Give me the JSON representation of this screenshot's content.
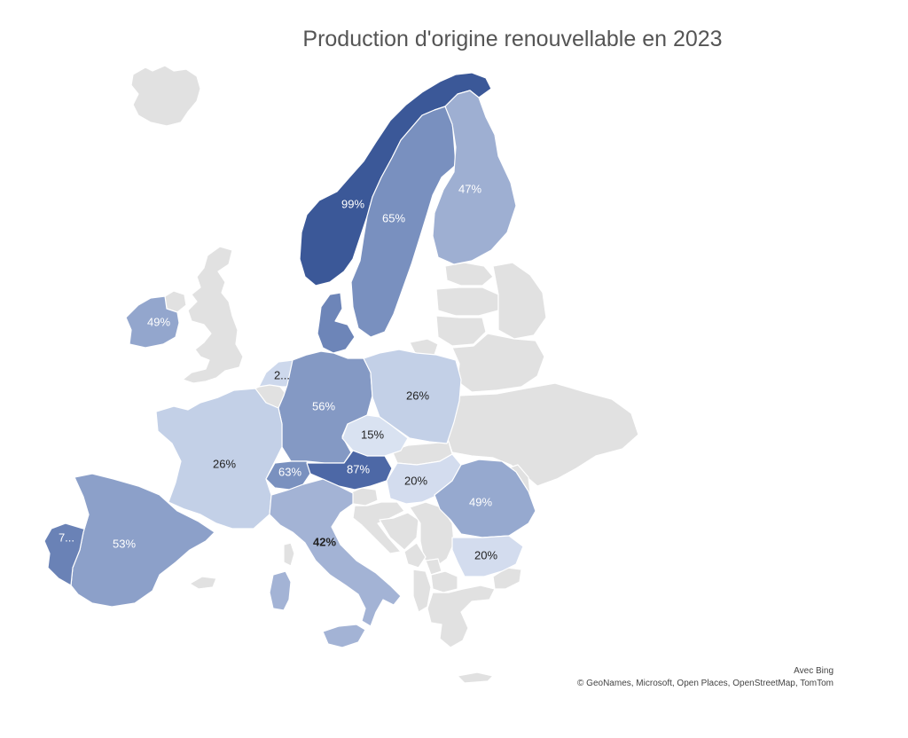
{
  "title": "Production d'origine renouvellable en 2023",
  "attribution": {
    "line1": "Avec Bing",
    "line2": "© GeoNames, Microsoft, Open Places, OpenStreetMap, TomTom"
  },
  "colors": {
    "nodata": "#e1e1e1",
    "scale_low": "#cfd9ec",
    "scale_high": "#355493"
  },
  "regions": [
    {
      "id": "norway",
      "name": "Norvège",
      "label": "99%",
      "value": 99,
      "fill": "#3b5898",
      "text_color": "#ffffff"
    },
    {
      "id": "sweden",
      "name": "Suède",
      "label": "65%",
      "value": 65,
      "fill": "#7990bf",
      "text_color": "#ffffff"
    },
    {
      "id": "finland",
      "name": "Finlande",
      "label": "47%",
      "value": 47,
      "fill": "#9eafd2",
      "text_color": "#ffffff"
    },
    {
      "id": "denmark",
      "name": "Danemark",
      "label": "",
      "value": null,
      "fill": "#6d85b8",
      "text_color": "#ffffff"
    },
    {
      "id": "ireland",
      "name": "Irlande",
      "label": "49%",
      "value": 49,
      "fill": "#93a6cd",
      "text_color": "#ffffff"
    },
    {
      "id": "netherlands",
      "name": "Pays-Bas",
      "label": "2...",
      "value": null,
      "fill": "#cdd8ec",
      "text_color": "#222222"
    },
    {
      "id": "germany",
      "name": "Allemagne",
      "label": "56%",
      "value": 56,
      "fill": "#8499c4",
      "text_color": "#ffffff"
    },
    {
      "id": "poland",
      "name": "Pologne",
      "label": "26%",
      "value": 26,
      "fill": "#c3d0e7",
      "text_color": "#222222"
    },
    {
      "id": "czechia",
      "name": "Tchéquie",
      "label": "15%",
      "value": 15,
      "fill": "#d9e2f1",
      "text_color": "#222222"
    },
    {
      "id": "france",
      "name": "France",
      "label": "26%",
      "value": 26,
      "fill": "#c3d0e7",
      "text_color": "#222222"
    },
    {
      "id": "switzerland",
      "name": "Suisse",
      "label": "63%",
      "value": 63,
      "fill": "#7a91bf",
      "text_color": "#ffffff"
    },
    {
      "id": "austria",
      "name": "Autriche",
      "label": "87%",
      "value": 87,
      "fill": "#4d68a6",
      "text_color": "#ffffff"
    },
    {
      "id": "hungary",
      "name": "Hongrie",
      "label": "20%",
      "value": 20,
      "fill": "#d3dcee",
      "text_color": "#222222"
    },
    {
      "id": "romania",
      "name": "Roumanie",
      "label": "49%",
      "value": 49,
      "fill": "#96a9cf",
      "text_color": "#ffffff"
    },
    {
      "id": "bulgaria",
      "name": "Bulgarie",
      "label": "20%",
      "value": 20,
      "fill": "#d3dcee",
      "text_color": "#222222"
    },
    {
      "id": "italy",
      "name": "Italie",
      "label": "42%",
      "value": 42,
      "fill": "#a3b3d5",
      "text_color": "#222222"
    },
    {
      "id": "spain",
      "name": "Espagne",
      "label": "53%",
      "value": 53,
      "fill": "#8ca0c9",
      "text_color": "#ffffff"
    },
    {
      "id": "portugal",
      "name": "Portugal",
      "label": "7...",
      "value": null,
      "fill": "#6a82b6",
      "text_color": "#ffffff"
    }
  ]
}
